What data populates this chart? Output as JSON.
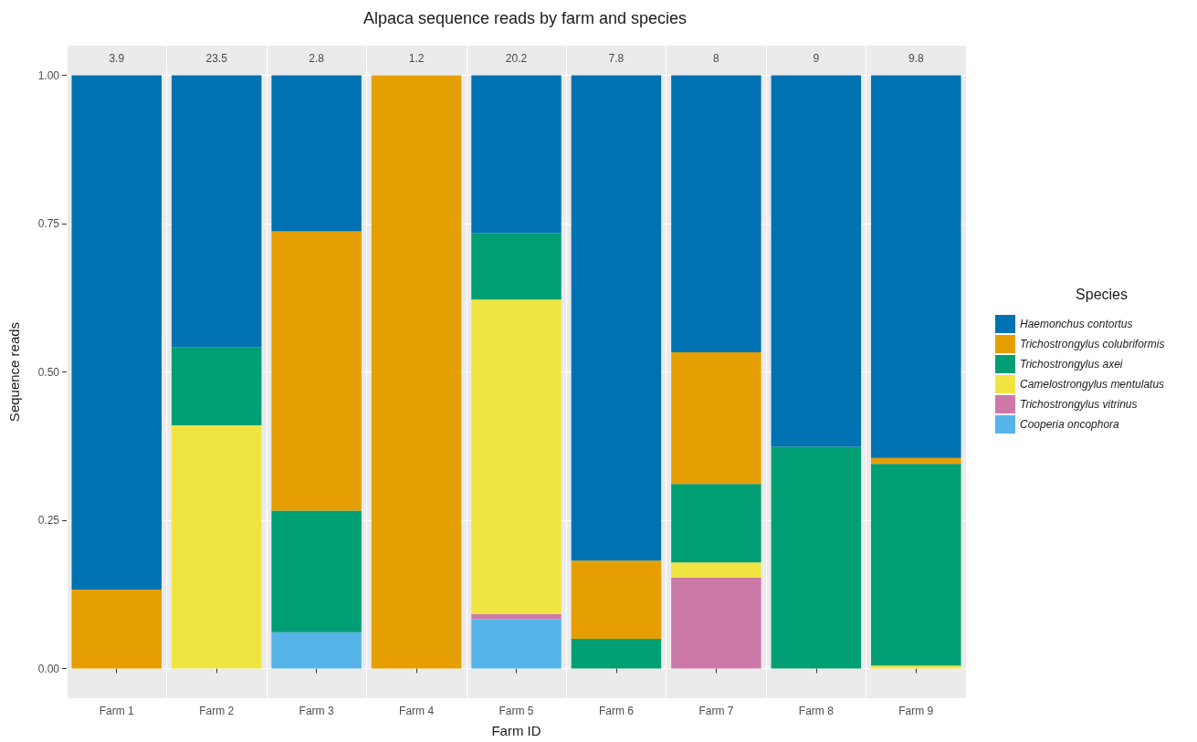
{
  "chart_data": {
    "type": "bar",
    "title": "Alpaca sequence reads by farm and species",
    "xlabel": "Farm ID",
    "ylabel": "Sequence reads",
    "legend_title": "Species",
    "stacked": true,
    "grid": true,
    "legend": "right",
    "categories": [
      "Farm 1",
      "Farm 2",
      "Farm 3",
      "Farm 4",
      "Farm 5",
      "Farm 6",
      "Farm 7",
      "Farm 8",
      "Farm 9"
    ],
    "ylim": [
      -0.05,
      1.05
    ],
    "yticks": [
      {
        "value": 0,
        "label": "0.00"
      },
      {
        "value": 0.25,
        "label": "0.25"
      },
      {
        "value": 0.5,
        "label": "0.50"
      },
      {
        "value": 0.75,
        "label": "0.75"
      },
      {
        "value": 1,
        "label": "1.00"
      }
    ],
    "series": [
      {
        "name": "Cooperia oncophora",
        "color": "#56b4e9",
        "values": [
          null,
          null,
          0.061,
          null,
          0.083,
          null,
          null,
          null,
          null
        ]
      },
      {
        "name": "Trichostrongylus vitrinus",
        "color": "#cc79a7",
        "values": [
          null,
          null,
          null,
          null,
          0.009,
          null,
          0.153,
          null,
          null
        ]
      },
      {
        "name": "Camelostrongylus mentulatus",
        "color": "#f0e442",
        "values": [
          null,
          0.41,
          null,
          null,
          0.53,
          null,
          0.026,
          null,
          0.005
        ]
      },
      {
        "name": "Trichostrongylus axei",
        "color": "#009e73",
        "values": [
          null,
          0.132,
          0.205,
          null,
          0.112,
          0.05,
          0.132,
          0.374,
          0.34
        ]
      },
      {
        "name": "Trichostrongylus colubriformis",
        "color": "#e69f00",
        "values": [
          0.133,
          null,
          0.471,
          1,
          null,
          0.132,
          0.222,
          null,
          0.01
        ]
      },
      {
        "name": "Haemonchus contortus",
        "color": "#0072b2",
        "values": [
          0.867,
          0.458,
          0.263,
          null,
          0.266,
          0.818,
          0.467,
          0.626,
          0.645
        ]
      }
    ],
    "annotations": [
      "3.9",
      "23.5",
      "2.8",
      "1.2",
      "20.2",
      "7.8",
      "8",
      "9",
      "9.8"
    ]
  }
}
